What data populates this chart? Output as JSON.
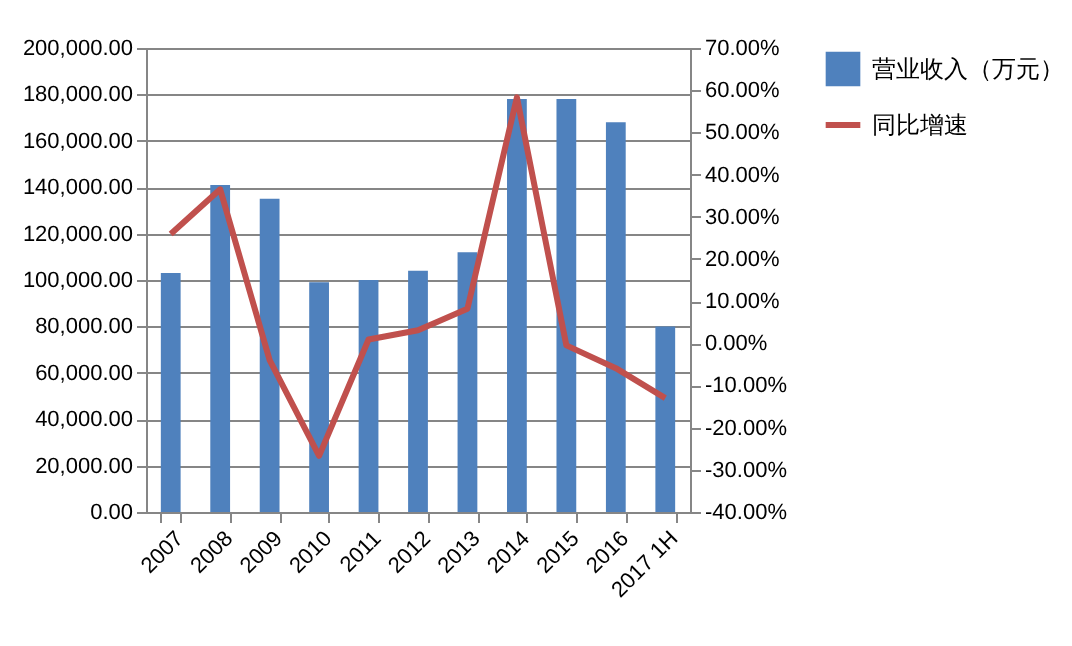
{
  "chart_data": {
    "type": "bar",
    "categories": [
      "2007",
      "2008",
      "2009",
      "2010",
      "2011",
      "2012",
      "2013",
      "2014",
      "2015",
      "2016",
      "2017 1H"
    ],
    "series": [
      {
        "name": "营业收入（万元）",
        "color": "#4f81bd",
        "values": [
          103000,
          141000,
          135000,
          99000,
          100000,
          104000,
          112000,
          178000,
          178000,
          168000,
          80000
        ]
      },
      {
        "name": "同比增速",
        "type": "line",
        "axis": "y2",
        "color": "#c0504d",
        "values": [
          25.9,
          36.5,
          -4.0,
          -26.7,
          0.9,
          3.1,
          8.2,
          58.3,
          -0.5,
          -5.9,
          -13.0
        ]
      }
    ],
    "ylim": [
      0,
      200000
    ],
    "yticks": [
      {
        "value": 0,
        "label": "0.00"
      },
      {
        "value": 20000,
        "label": "20,000.00"
      },
      {
        "value": 40000,
        "label": "40,000.00"
      },
      {
        "value": 60000,
        "label": "60,000.00"
      },
      {
        "value": 80000,
        "label": "80,000.00"
      },
      {
        "value": 100000,
        "label": "100,000.00"
      },
      {
        "value": 120000,
        "label": "120,000.00"
      },
      {
        "value": 140000,
        "label": "140,000.00"
      },
      {
        "value": 160000,
        "label": "160,000.00"
      },
      {
        "value": 180000,
        "label": "180,000.00"
      },
      {
        "value": 200000,
        "label": "200,000.00"
      }
    ],
    "y2lim": [
      -40,
      70
    ],
    "y2ticks": [
      {
        "value": -40,
        "label": "-40.00%"
      },
      {
        "value": -30,
        "label": "-30.00%"
      },
      {
        "value": -20,
        "label": "-20.00%"
      },
      {
        "value": -10,
        "label": "-10.00%"
      },
      {
        "value": 0,
        "label": "0.00%"
      },
      {
        "value": 10,
        "label": "10.00%"
      },
      {
        "value": 20,
        "label": "20.00%"
      },
      {
        "value": 30,
        "label": "30.00%"
      },
      {
        "value": 40,
        "label": "40.00%"
      },
      {
        "value": 50,
        "label": "50.00%"
      },
      {
        "value": 60,
        "label": "60.00%"
      },
      {
        "value": 70,
        "label": "70.00%"
      }
    ],
    "grid": "y",
    "legend": "right",
    "marker": "none",
    "line_style": "solid"
  }
}
